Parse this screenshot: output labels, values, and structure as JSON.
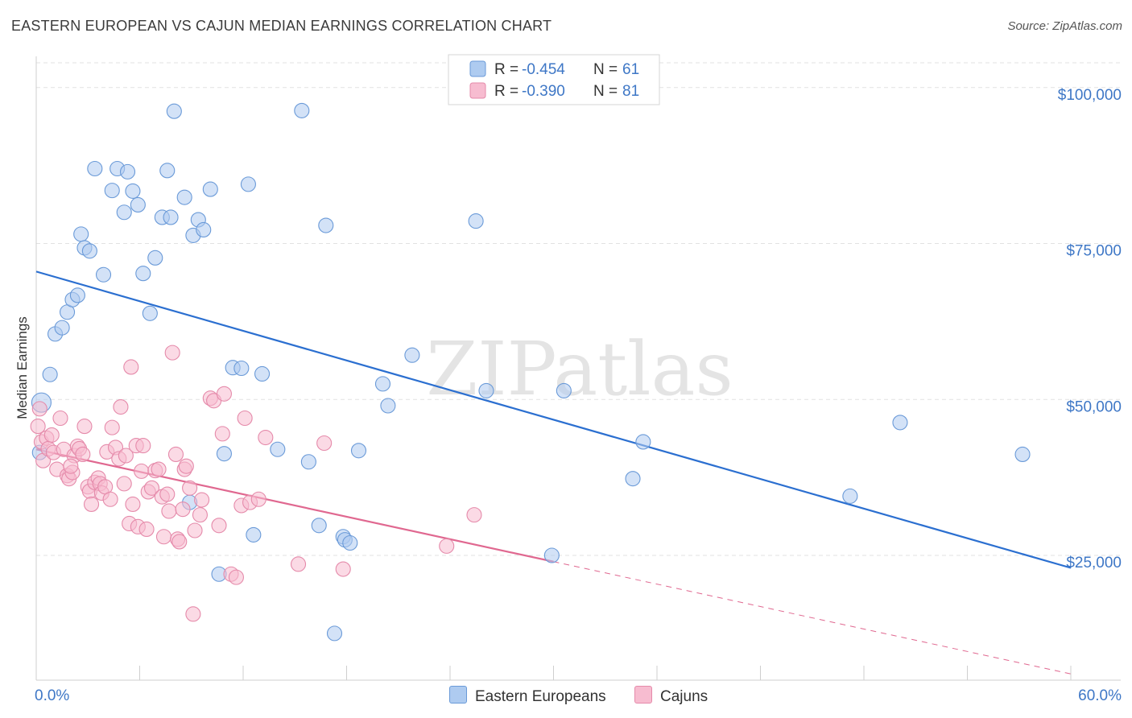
{
  "title": "EASTERN EUROPEAN VS CAJUN MEDIAN EARNINGS CORRELATION CHART",
  "source": "Source: ZipAtlas.com",
  "watermark": "ZIPatlas",
  "colors": {
    "blue_fill": "#aecbf0",
    "blue_stroke": "#6a9ad8",
    "blue_line": "#2b6fd0",
    "pink_fill": "#f7bcd0",
    "pink_stroke": "#e58aaa",
    "pink_line": "#e06890",
    "axis_text": "#3e77c6",
    "grid": "#e2e2e2"
  },
  "legend_top": {
    "rows": [
      {
        "r_label": "R =",
        "r_value": "-0.454",
        "n_label": "N =",
        "n_value": "61"
      },
      {
        "r_label": "R =",
        "r_value": "-0.390",
        "n_label": "N =",
        "n_value": "81"
      }
    ]
  },
  "legend_bottom": {
    "items": [
      "Eastern Europeans",
      "Cajuns"
    ]
  },
  "chart_data": {
    "type": "scatter",
    "title": "EASTERN EUROPEAN VS CAJUN MEDIAN EARNINGS CORRELATION CHART",
    "xlabel": "",
    "ylabel": "Median Earnings",
    "xlim": [
      0,
      60
    ],
    "ylim": [
      5000,
      105000
    ],
    "x_tick_labels": [
      "0.0%",
      "60.0%"
    ],
    "y_ticks": [
      25000,
      50000,
      75000,
      100000
    ],
    "y_tick_labels": [
      "$25,000",
      "$50,000",
      "$75,000",
      "$100,000"
    ],
    "grid": true,
    "legend_position": "top-center",
    "series": [
      {
        "name": "Eastern Europeans",
        "r": -0.454,
        "n": 61,
        "trend": {
          "x": [
            0,
            60
          ],
          "y": [
            70500,
            23000
          ],
          "dashed_from": null
        },
        "points": [
          [
            0.2,
            41500
          ],
          [
            0.3,
            49500
          ],
          [
            0.8,
            54000
          ],
          [
            1.1,
            60500
          ],
          [
            1.5,
            61500
          ],
          [
            1.8,
            64000
          ],
          [
            2.1,
            66000
          ],
          [
            2.4,
            66700
          ],
          [
            2.6,
            76500
          ],
          [
            2.8,
            74300
          ],
          [
            3.1,
            73800
          ],
          [
            3.4,
            87000
          ],
          [
            3.9,
            70000
          ],
          [
            4.4,
            83500
          ],
          [
            4.7,
            87000
          ],
          [
            5.1,
            80000
          ],
          [
            5.3,
            86500
          ],
          [
            5.6,
            83400
          ],
          [
            5.9,
            81200
          ],
          [
            6.2,
            70200
          ],
          [
            6.6,
            63800
          ],
          [
            6.9,
            72700
          ],
          [
            7.3,
            79200
          ],
          [
            7.6,
            86700
          ],
          [
            7.8,
            79200
          ],
          [
            8.0,
            96200
          ],
          [
            8.6,
            82400
          ],
          [
            9.1,
            76300
          ],
          [
            9.4,
            78800
          ],
          [
            9.7,
            77200
          ],
          [
            10.1,
            83700
          ],
          [
            10.6,
            22000
          ],
          [
            10.9,
            41300
          ],
          [
            11.4,
            55100
          ],
          [
            11.9,
            55000
          ],
          [
            12.3,
            84500
          ],
          [
            12.6,
            28300
          ],
          [
            13.1,
            54100
          ],
          [
            14.0,
            42000
          ],
          [
            15.4,
            96300
          ],
          [
            15.8,
            40000
          ],
          [
            16.4,
            29800
          ],
          [
            16.8,
            77900
          ],
          [
            17.3,
            12500
          ],
          [
            17.8,
            28000
          ],
          [
            17.9,
            27500
          ],
          [
            18.2,
            27000
          ],
          [
            18.7,
            41800
          ],
          [
            20.1,
            52500
          ],
          [
            20.4,
            49000
          ],
          [
            21.8,
            57100
          ],
          [
            25.5,
            78600
          ],
          [
            26.1,
            51400
          ],
          [
            29.9,
            25000
          ],
          [
            30.6,
            51400
          ],
          [
            34.6,
            37300
          ],
          [
            35.2,
            43200
          ],
          [
            47.2,
            34500
          ],
          [
            50.1,
            46300
          ],
          [
            57.2,
            41200
          ],
          [
            8.9,
            33500
          ]
        ]
      },
      {
        "name": "Cajuns",
        "r": -0.39,
        "n": 81,
        "trend": {
          "x": [
            0,
            60
          ],
          "y": [
            42000,
            6000
          ],
          "dashed_from": 30
        },
        "points": [
          [
            0.1,
            45700
          ],
          [
            0.2,
            48500
          ],
          [
            0.3,
            43200
          ],
          [
            0.4,
            40200
          ],
          [
            0.6,
            43800
          ],
          [
            0.7,
            42100
          ],
          [
            0.9,
            44300
          ],
          [
            1.0,
            41500
          ],
          [
            1.2,
            38800
          ],
          [
            1.4,
            47000
          ],
          [
            1.6,
            42000
          ],
          [
            1.8,
            37800
          ],
          [
            1.9,
            37300
          ],
          [
            2.1,
            38300
          ],
          [
            2.2,
            41000
          ],
          [
            2.4,
            42500
          ],
          [
            2.5,
            42100
          ],
          [
            2.7,
            41200
          ],
          [
            2.8,
            45700
          ],
          [
            3.0,
            36000
          ],
          [
            3.1,
            35300
          ],
          [
            3.2,
            33200
          ],
          [
            3.4,
            36700
          ],
          [
            3.6,
            37400
          ],
          [
            3.7,
            36500
          ],
          [
            3.8,
            35000
          ],
          [
            4.0,
            36000
          ],
          [
            4.1,
            41600
          ],
          [
            4.3,
            34000
          ],
          [
            4.4,
            45500
          ],
          [
            4.6,
            42300
          ],
          [
            4.8,
            40500
          ],
          [
            4.9,
            48800
          ],
          [
            5.1,
            36500
          ],
          [
            5.2,
            41000
          ],
          [
            5.4,
            30100
          ],
          [
            5.5,
            55200
          ],
          [
            5.6,
            33200
          ],
          [
            5.8,
            42600
          ],
          [
            5.9,
            29600
          ],
          [
            6.1,
            38500
          ],
          [
            6.2,
            42600
          ],
          [
            6.4,
            29200
          ],
          [
            6.5,
            35200
          ],
          [
            6.7,
            35800
          ],
          [
            6.9,
            38600
          ],
          [
            7.1,
            38800
          ],
          [
            7.3,
            34400
          ],
          [
            7.4,
            28000
          ],
          [
            7.6,
            34800
          ],
          [
            7.7,
            32100
          ],
          [
            7.9,
            57500
          ],
          [
            8.1,
            41200
          ],
          [
            8.2,
            27600
          ],
          [
            8.3,
            27200
          ],
          [
            8.5,
            32400
          ],
          [
            8.6,
            38800
          ],
          [
            8.7,
            39300
          ],
          [
            8.9,
            35800
          ],
          [
            9.1,
            15600
          ],
          [
            9.2,
            29000
          ],
          [
            9.5,
            31500
          ],
          [
            9.6,
            33900
          ],
          [
            10.1,
            50200
          ],
          [
            10.3,
            49800
          ],
          [
            10.6,
            29800
          ],
          [
            10.8,
            44500
          ],
          [
            10.9,
            50900
          ],
          [
            11.3,
            22000
          ],
          [
            11.6,
            21500
          ],
          [
            11.9,
            33000
          ],
          [
            12.1,
            47000
          ],
          [
            12.4,
            33500
          ],
          [
            12.9,
            34000
          ],
          [
            13.3,
            43900
          ],
          [
            15.2,
            23600
          ],
          [
            16.7,
            43000
          ],
          [
            17.8,
            22800
          ],
          [
            23.8,
            26500
          ],
          [
            25.4,
            31500
          ],
          [
            2.0,
            39300
          ]
        ]
      }
    ]
  }
}
